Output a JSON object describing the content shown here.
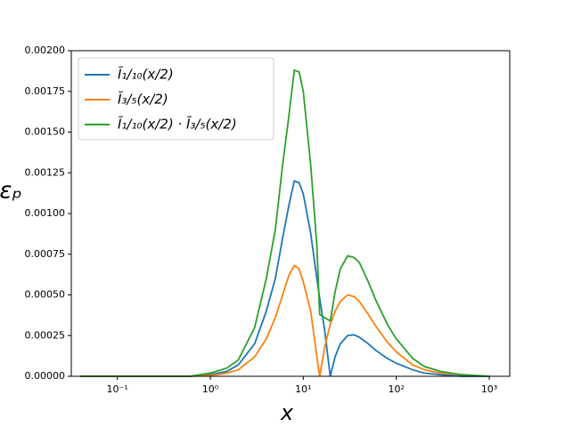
{
  "chart_data": {
    "type": "line",
    "xlabel": "x",
    "ylabel": "εₚ",
    "xscale": "log",
    "x": [
      0.04,
      0.1,
      0.3,
      0.6,
      1,
      1.5,
      2,
      3,
      4,
      5,
      6,
      7,
      8,
      9,
      10,
      12,
      14,
      15,
      17,
      19.5,
      22,
      25,
      30,
      35,
      40,
      50,
      60,
      80,
      100,
      150,
      200,
      300,
      500,
      1000
    ],
    "series": [
      {
        "name": "Ĩ₁/₁₀(x/2)",
        "color": "#1f77b4",
        "values": [
          0,
          0,
          0,
          0,
          1e-05,
          3e-05,
          7e-05,
          0.0002,
          0.0004,
          0.0006,
          0.00085,
          0.00105,
          0.0012,
          0.00119,
          0.00112,
          0.00088,
          0.0006,
          0.00048,
          0.00028,
          0,
          0.00012,
          0.0002,
          0.00025,
          0.000255,
          0.00024,
          0.0002,
          0.00016,
          0.00011,
          8e-05,
          4e-05,
          2e-05,
          1e-05,
          0,
          0
        ]
      },
      {
        "name": "Ĩ₃/₅(x/2)",
        "color": "#ff7f0e",
        "values": [
          0,
          0,
          0,
          0,
          5e-06,
          2e-05,
          4e-05,
          0.00012,
          0.00023,
          0.00036,
          0.0005,
          0.00062,
          0.00068,
          0.00066,
          0.00058,
          0.0004,
          0.00012,
          0,
          0.00018,
          0.00032,
          0.0004,
          0.00046,
          0.0005,
          0.00049,
          0.00046,
          0.00038,
          0.00031,
          0.00021,
          0.00015,
          7e-05,
          4e-05,
          2e-05,
          1e-05,
          0
        ]
      },
      {
        "name": "Ĩ₁/₁₀(x/2) · Ĩ₃/₅(x/2)",
        "color": "#2ca02c",
        "values": [
          0,
          0,
          0,
          0,
          2e-05,
          5e-05,
          0.0001,
          0.0003,
          0.0006,
          0.0009,
          0.0013,
          0.0016,
          0.00188,
          0.00187,
          0.00175,
          0.0013,
          0.0008,
          0.00038,
          0.00036,
          0.00034,
          0.00052,
          0.00066,
          0.00074,
          0.00073,
          0.0007,
          0.00058,
          0.00047,
          0.00032,
          0.00023,
          0.00011,
          6e-05,
          3e-05,
          1e-05,
          0
        ]
      }
    ],
    "xlim": [
      0.032,
      1660
    ],
    "ylim": [
      0,
      0.002
    ],
    "xticks": [
      {
        "value": 0.1,
        "label": "10⁻¹"
      },
      {
        "value": 1,
        "label": "10⁰"
      },
      {
        "value": 10,
        "label": "10¹"
      },
      {
        "value": 100,
        "label": "10²"
      },
      {
        "value": 1000,
        "label": "10³"
      }
    ],
    "yticks": [
      {
        "value": 0,
        "label": "0.00000"
      },
      {
        "value": 0.00025,
        "label": "0.00025"
      },
      {
        "value": 0.0005,
        "label": "0.00050"
      },
      {
        "value": 0.00075,
        "label": "0.00075"
      },
      {
        "value": 0.001,
        "label": "0.00100"
      },
      {
        "value": 0.00125,
        "label": "0.00125"
      },
      {
        "value": 0.0015,
        "label": "0.00150"
      },
      {
        "value": 0.00175,
        "label": "0.00175"
      },
      {
        "value": 0.002,
        "label": "0.00200"
      }
    ],
    "legend": "upper left"
  }
}
